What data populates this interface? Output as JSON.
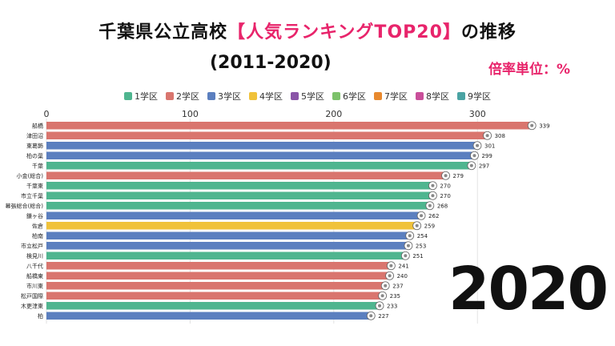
{
  "title": {
    "prefix": "千葉県公立高校",
    "highlight": "【人気ランキングTOP20】",
    "suffix": "の推移",
    "range": "(2011-2020)"
  },
  "unit_label": "倍率単位：%",
  "year_label": "2020",
  "legend": [
    {
      "label": "1学区",
      "color": "#4fb58f"
    },
    {
      "label": "2学区",
      "color": "#d9756e"
    },
    {
      "label": "3学区",
      "color": "#5b7fbf"
    },
    {
      "label": "4学区",
      "color": "#f0c23a"
    },
    {
      "label": "5学区",
      "color": "#8a55a8"
    },
    {
      "label": "6学区",
      "color": "#7cc26a"
    },
    {
      "label": "7学区",
      "color": "#e8892e"
    },
    {
      "label": "8学区",
      "color": "#c94f9a"
    },
    {
      "label": "9学区",
      "color": "#4aa3a3"
    }
  ],
  "chart_data": {
    "type": "bar",
    "orientation": "horizontal",
    "xlim": [
      0,
      340
    ],
    "xticks": [
      0,
      100,
      200,
      300
    ],
    "grid": true,
    "categories": [
      "船橋",
      "津田沼",
      "東葛飾",
      "柏の葉",
      "千葉",
      "小金(総合)",
      "千葉東",
      "市立千葉",
      "幕張総合(総合)",
      "鎌ヶ谷",
      "佐倉",
      "柏南",
      "市立松戸",
      "検見川",
      "八千代",
      "船橋東",
      "市川東",
      "松戸国際",
      "木更津東",
      "柏"
    ],
    "values": [
      339,
      308,
      301,
      299,
      297,
      279,
      270,
      270,
      268,
      262,
      259,
      254,
      253,
      251,
      241,
      240,
      237,
      235,
      233,
      227
    ],
    "colors": [
      "#d9756e",
      "#d9756e",
      "#5b7fbf",
      "#5b7fbf",
      "#4fb58f",
      "#d9756e",
      "#4fb58f",
      "#4fb58f",
      "#4fb58f",
      "#5b7fbf",
      "#f0c23a",
      "#5b7fbf",
      "#5b7fbf",
      "#4fb58f",
      "#d9756e",
      "#d9756e",
      "#d9756e",
      "#d9756e",
      "#4fb58f",
      "#5b7fbf"
    ]
  }
}
